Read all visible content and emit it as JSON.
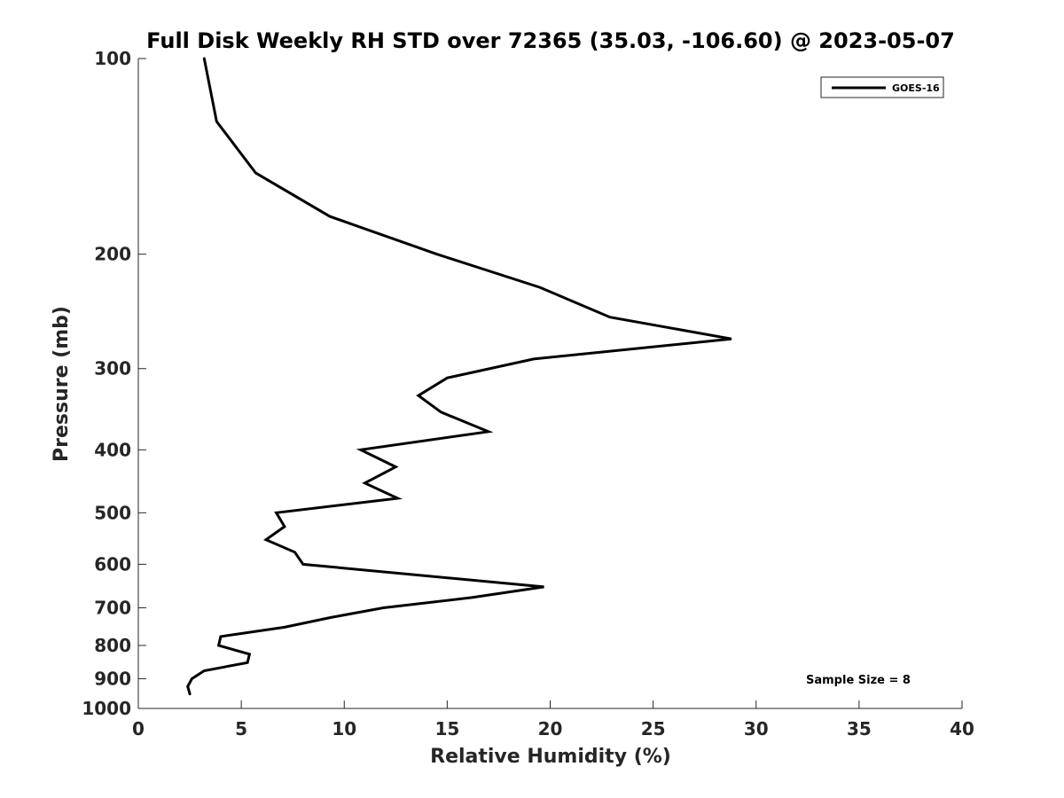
{
  "chart_data": {
    "type": "line",
    "title": "Full Disk Weekly RH STD over 72365 (35.03, -106.60) @ 2023-05-07",
    "xlabel": "Relative Humidity (%)",
    "ylabel": "Pressure (mb)",
    "xlim": [
      0,
      40
    ],
    "ylim": [
      100,
      1000
    ],
    "yscale": "log",
    "y_reversed": true,
    "xticks": [
      0,
      5,
      10,
      15,
      20,
      25,
      30,
      35,
      40
    ],
    "yticks": [
      100,
      200,
      300,
      400,
      500,
      600,
      700,
      800,
      900,
      1000
    ],
    "grid": false,
    "legend_position": "top-right",
    "series": [
      {
        "name": "GOES-16",
        "color": "#000000",
        "points": [
          {
            "x": 3.2,
            "y": 100
          },
          {
            "x": 3.8,
            "y": 125
          },
          {
            "x": 5.7,
            "y": 150
          },
          {
            "x": 9.3,
            "y": 175
          },
          {
            "x": 14.5,
            "y": 200
          },
          {
            "x": 19.5,
            "y": 225
          },
          {
            "x": 22.9,
            "y": 250
          },
          {
            "x": 28.8,
            "y": 270
          },
          {
            "x": 19.2,
            "y": 290
          },
          {
            "x": 15.0,
            "y": 310
          },
          {
            "x": 13.6,
            "y": 330
          },
          {
            "x": 14.7,
            "y": 350
          },
          {
            "x": 17.0,
            "y": 375
          },
          {
            "x": 10.8,
            "y": 400
          },
          {
            "x": 12.5,
            "y": 425
          },
          {
            "x": 11.0,
            "y": 450
          },
          {
            "x": 12.6,
            "y": 475
          },
          {
            "x": 6.7,
            "y": 500
          },
          {
            "x": 7.1,
            "y": 525
          },
          {
            "x": 6.2,
            "y": 550
          },
          {
            "x": 7.6,
            "y": 575
          },
          {
            "x": 8.0,
            "y": 600
          },
          {
            "x": 19.7,
            "y": 650
          },
          {
            "x": 16.2,
            "y": 675
          },
          {
            "x": 11.9,
            "y": 700
          },
          {
            "x": 9.3,
            "y": 725
          },
          {
            "x": 7.1,
            "y": 750
          },
          {
            "x": 4.0,
            "y": 775
          },
          {
            "x": 3.9,
            "y": 800
          },
          {
            "x": 5.4,
            "y": 825
          },
          {
            "x": 5.3,
            "y": 850
          },
          {
            "x": 3.2,
            "y": 875
          },
          {
            "x": 2.6,
            "y": 900
          },
          {
            "x": 2.4,
            "y": 925
          },
          {
            "x": 2.5,
            "y": 950
          }
        ]
      }
    ],
    "annotations": [
      "Sample Size = 8"
    ]
  }
}
